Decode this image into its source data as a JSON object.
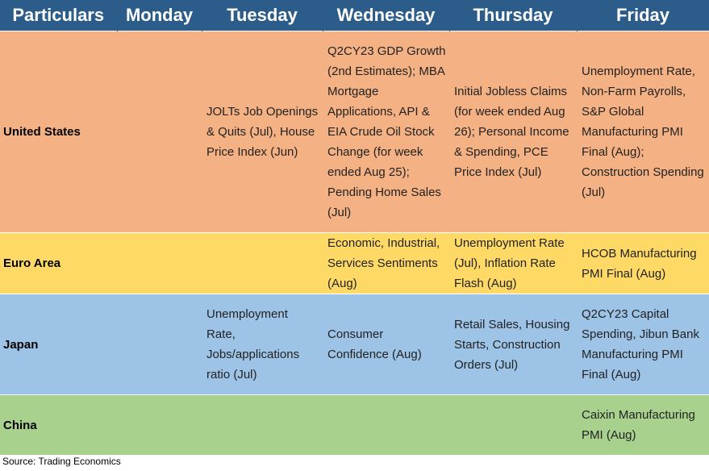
{
  "table": {
    "header": [
      "Particulars",
      "Monday",
      "Tuesday",
      "Wednesday",
      "Thursday",
      "Friday"
    ],
    "rows": [
      [
        "United States",
        null,
        "JOLTs Job Openings & Quits (Jul), House Price Index (Jun)",
        "Q2CY23 GDP Growth (2nd Estimates); MBA Mortgage Applications, API & EIA Crude Oil Stock Change (for week ended Aug 25); Pending Home Sales (Jul)",
        "Initial Jobless Claims (for week ended Aug 26); Personal Income & Spending, PCE Price Index (Jul)",
        "Unemployment Rate, Non-Farm Payrolls, S&P Global Manufacturing PMI Final (Aug); Construction Spending (Jul)"
      ],
      [
        "Euro Area",
        null,
        null,
        "Economic, Industrial, Services Sentiments (Aug)",
        "Unemployment Rate (Jul), Inflation Rate Flash (Aug)",
        "HCOB Manufacturing PMI Final (Aug)"
      ],
      [
        "Japan",
        null,
        "Unemployment Rate, Jobs/applications ratio (Jul)",
        "Consumer Confidence (Aug)",
        "Retail Sales, Housing Starts, Construction Orders (Jul)",
        "Q2CY23 Capital Spending, Jibun Bank Manufacturing PMI Final (Aug)"
      ],
      [
        "China",
        null,
        null,
        null,
        null,
        "Caixin Manufacturing PMI (Aug)"
      ]
    ]
  },
  "footer": {
    "source": "Source: Trading Economics"
  }
}
